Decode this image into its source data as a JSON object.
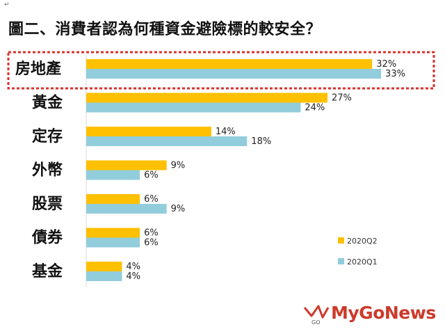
{
  "chart_data": {
    "type": "bar",
    "orientation": "horizontal",
    "title": "圖二、消費者認為何種資金避險標的較安全？",
    "categories": [
      "房地產",
      "黃金",
      "定存",
      "外幣",
      "股票",
      "債券",
      "基金"
    ],
    "series": [
      {
        "name": "2020Q2",
        "color": "#ffc000",
        "values": [
          32,
          27,
          14,
          9,
          6,
          6,
          4
        ],
        "labels": [
          "32%",
          "27%",
          "14%",
          "9%",
          "6%",
          "6%",
          "4%"
        ]
      },
      {
        "name": "2020Q1",
        "color": "#92cddc",
        "values": [
          33,
          24,
          18,
          6,
          9,
          6,
          4
        ],
        "labels": [
          "33%",
          "24%",
          "18%",
          "6%",
          "9%",
          "6%",
          "4%"
        ]
      }
    ],
    "xlim": [
      0,
      35
    ],
    "grid": false,
    "legend_position": "bottom-right",
    "highlight_category": "房地產",
    "highlight_color": "#d9302c"
  },
  "top_mark": "↵",
  "logo": {
    "text": "MyGoNews",
    "badge": "GO",
    "color": "#cc3a2a"
  }
}
